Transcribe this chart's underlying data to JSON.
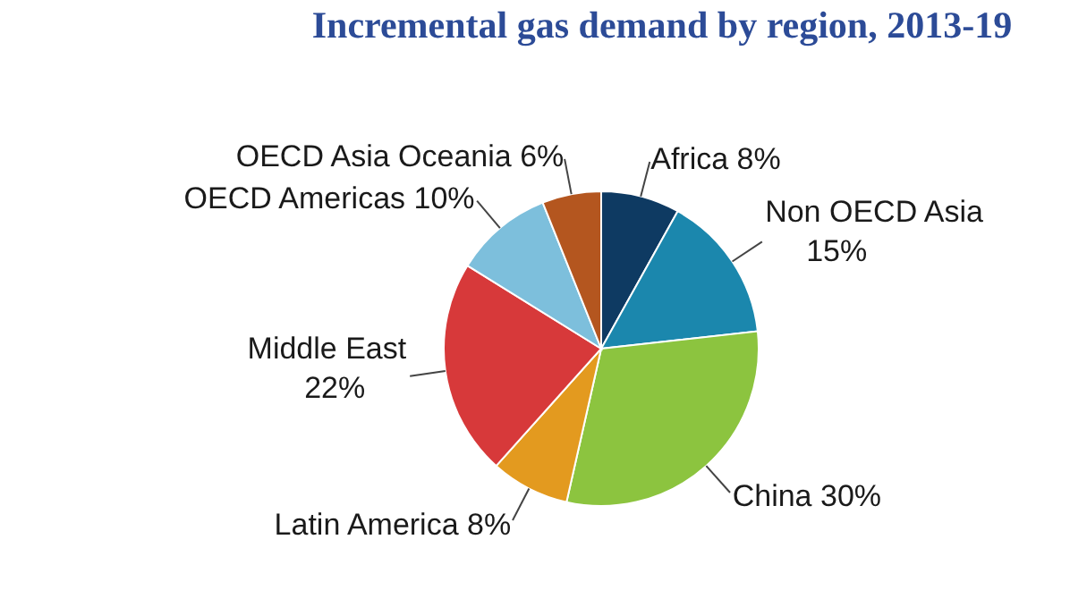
{
  "chart_data": {
    "type": "pie",
    "title": "Incremental gas demand by region, 2013-19",
    "categories": [
      "Africa",
      "Non OECD Asia",
      "China",
      "Latin America",
      "Middle East",
      "OECD Americas",
      "OECD Asia Oceania"
    ],
    "values": [
      8,
      15,
      30,
      8,
      22,
      10,
      6
    ],
    "value_labels": [
      "8%",
      "15%",
      "30%",
      "8%",
      "22%",
      "10%",
      "6%"
    ],
    "colors": [
      "#0e3a62",
      "#1b87ad",
      "#8cc43f",
      "#e39a1f",
      "#d7393a",
      "#7dbfdc",
      "#b4561f"
    ]
  }
}
